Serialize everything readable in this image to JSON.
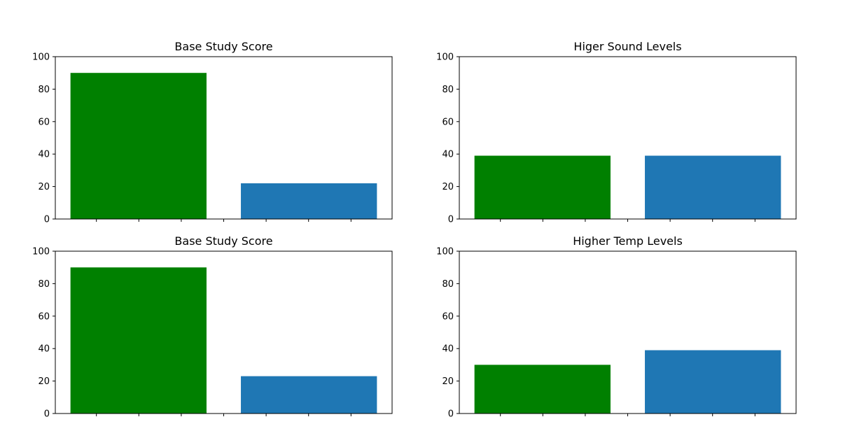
{
  "chart_data": [
    {
      "type": "bar",
      "title": "Base Study Score",
      "xlabel": "",
      "ylabel": "",
      "ylim": [
        0,
        100
      ],
      "yticks": [
        "0",
        "20",
        "40",
        "60",
        "80",
        "100"
      ],
      "values": [
        90,
        22
      ],
      "colors": [
        "#008000",
        "#1f77b4"
      ],
      "grid": false,
      "legend": "none"
    },
    {
      "type": "bar",
      "title": "Higer Sound Levels",
      "xlabel": "",
      "ylabel": "",
      "ylim": [
        0,
        100
      ],
      "yticks": [
        "0",
        "20",
        "40",
        "60",
        "80",
        "100"
      ],
      "values": [
        39,
        39
      ],
      "colors": [
        "#008000",
        "#1f77b4"
      ],
      "grid": false,
      "legend": "none"
    },
    {
      "type": "bar",
      "title": "Base Study Score",
      "xlabel": "",
      "ylabel": "",
      "ylim": [
        0,
        100
      ],
      "yticks": [
        "0",
        "20",
        "40",
        "60",
        "80",
        "100"
      ],
      "values": [
        90,
        23
      ],
      "colors": [
        "#008000",
        "#1f77b4"
      ],
      "grid": false,
      "legend": "none"
    },
    {
      "type": "bar",
      "title": "Higher Temp Levels",
      "xlabel": "",
      "ylabel": "",
      "ylim": [
        0,
        100
      ],
      "yticks": [
        "0",
        "20",
        "40",
        "60",
        "80",
        "100"
      ],
      "values": [
        30,
        39
      ],
      "colors": [
        "#008000",
        "#1f77b4"
      ],
      "grid": false,
      "legend": "none"
    }
  ]
}
